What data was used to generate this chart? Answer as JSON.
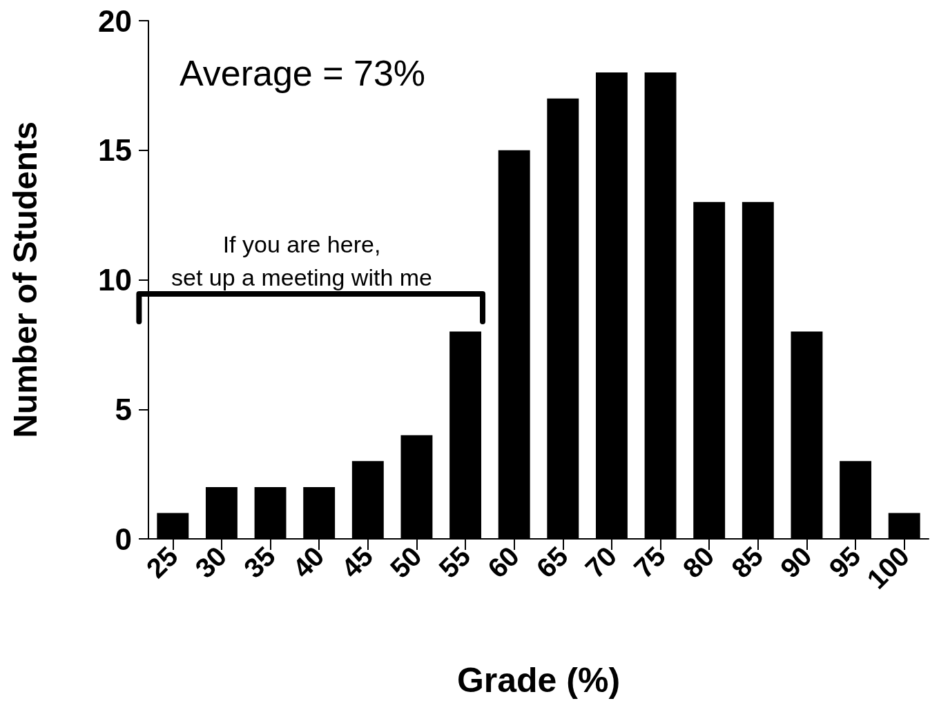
{
  "chart_data": {
    "type": "bar",
    "xlabel": "Grade (%)",
    "ylabel": "Number of Students",
    "categories": [
      "25",
      "30",
      "35",
      "40",
      "45",
      "50",
      "55",
      "60",
      "65",
      "70",
      "75",
      "80",
      "85",
      "90",
      "95",
      "100"
    ],
    "values": [
      1,
      2,
      2,
      2,
      3,
      4,
      8,
      15,
      17,
      18,
      18,
      13,
      13,
      8,
      3,
      1
    ],
    "color": "#000000",
    "ylim": [
      0,
      20
    ],
    "yticks": [
      0,
      5,
      10,
      15,
      20
    ],
    "grid": false,
    "annotations": [
      "Average = 73%",
      "If you are here,\nset up a meeting with me"
    ]
  }
}
